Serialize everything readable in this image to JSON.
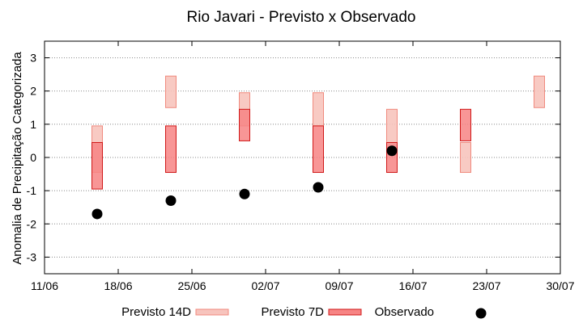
{
  "chart_data": {
    "type": "range-bar-scatter",
    "title": "Rio Javari - Previsto x Observado",
    "ylabel": "Anomalia de Precipitação Categorizada",
    "xlabel": "",
    "ylim": [
      -3.5,
      3.5
    ],
    "yticks": [
      -3,
      -2,
      -1,
      0,
      1,
      2,
      3
    ],
    "xlim": [
      "2014-06-11",
      "2014-07-30"
    ],
    "xticks": [
      "11/06",
      "18/06",
      "25/06",
      "02/07",
      "09/07",
      "16/07",
      "23/07",
      "30/07"
    ],
    "grid": "horizontal-dotted",
    "legend_position": "bottom",
    "series": [
      {
        "name": "Previsto 14D",
        "color": "#f7c4bd",
        "stroke": "#f08a7e",
        "ranges": [
          {
            "x": "2014-06-16",
            "low": -0.45,
            "high": 0.95
          },
          {
            "x": "2014-06-23",
            "low": 1.5,
            "high": 2.45
          },
          {
            "x": "2014-06-30",
            "low": 0.95,
            "high": 1.95
          },
          {
            "x": "2014-07-07",
            "low": 0.95,
            "high": 1.95
          },
          {
            "x": "2014-07-14",
            "low": 0.45,
            "high": 1.45
          },
          {
            "x": "2014-07-21",
            "low": -0.45,
            "high": 0.45
          },
          {
            "x": "2014-07-28",
            "low": 1.5,
            "high": 2.45
          }
        ]
      },
      {
        "name": "Previsto 7D",
        "color": "#f78484",
        "stroke": "#d01818",
        "ranges": [
          {
            "x": "2014-06-16",
            "low": -0.95,
            "high": 0.45
          },
          {
            "x": "2014-06-23",
            "low": -0.45,
            "high": 0.95
          },
          {
            "x": "2014-06-30",
            "low": 0.5,
            "high": 1.45
          },
          {
            "x": "2014-07-07",
            "low": -0.45,
            "high": 0.95
          },
          {
            "x": "2014-07-14",
            "low": -0.45,
            "high": 0.45
          },
          {
            "x": "2014-07-21",
            "low": 0.5,
            "high": 1.45
          }
        ]
      },
      {
        "name": "Observado",
        "color": "#000000",
        "points": [
          {
            "x": "2014-06-16",
            "y": -1.7
          },
          {
            "x": "2014-06-23",
            "y": -1.3
          },
          {
            "x": "2014-06-30",
            "y": -1.1
          },
          {
            "x": "2014-07-07",
            "y": -0.9
          },
          {
            "x": "2014-07-14",
            "y": 0.2
          }
        ]
      }
    ]
  }
}
